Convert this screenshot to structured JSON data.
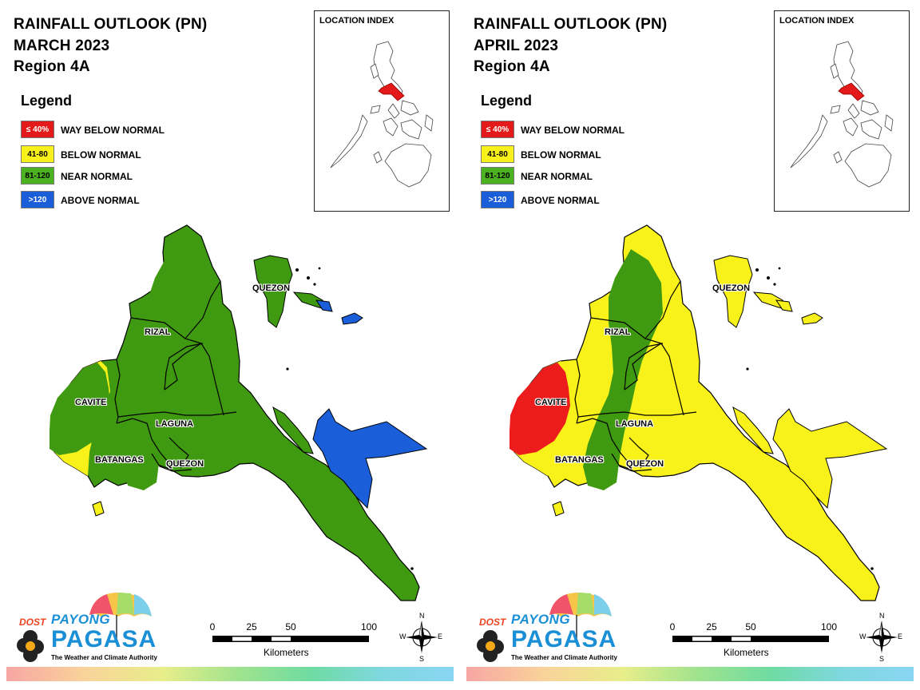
{
  "panels": [
    {
      "title_line1": "RAINFALL OUTLOOK (PN)",
      "title_line2": "MARCH 2023",
      "title_line3": "Region 4A",
      "provinces": {
        "quezon_north": "QUEZON",
        "rizal": "RIZAL",
        "cavite": "CAVITE",
        "laguna": "LAGUNA",
        "batangas": "BATANGAS",
        "quezon_south": "QUEZON"
      },
      "colors": {
        "mainland": "#3f9a11",
        "west_cavite": "#f9f21a",
        "bondoc_east": "#1a5fd9",
        "north_islands": "#3f9a11",
        "east_islands": "#1a5fd9",
        "islet_small": "#f9f21a",
        "central_band": "#3f9a11",
        "west_red": "#3f9a11"
      }
    },
    {
      "title_line1": "RAINFALL OUTLOOK (PN)",
      "title_line2": "APRIL 2023",
      "title_line3": "Region 4A",
      "provinces": {
        "quezon_north": "QUEZON",
        "rizal": "RIZAL",
        "cavite": "CAVITE",
        "laguna": "LAGUNA",
        "batangas": "BATANGAS",
        "quezon_south": "QUEZON"
      },
      "colors": {
        "mainland": "#f9f21a",
        "west_cavite": "#f9f21a",
        "bondoc_east": "#f9f21a",
        "north_islands": "#f9f21a",
        "east_islands": "#f9f21a",
        "islet_small": "#f9f21a",
        "central_band": "#3f9a11",
        "west_red": "#ec1c1c"
      }
    }
  ],
  "legend": {
    "title": "Legend",
    "items": [
      {
        "swatch_text": "≤ 40%",
        "label": "WAY BELOW NORMAL",
        "color": "#e41a1a",
        "text_color": "#ffffff"
      },
      {
        "swatch_text": "41-80",
        "label": "BELOW NORMAL",
        "color": "#f9f21a",
        "text_color": "#000000"
      },
      {
        "swatch_text": "81-120",
        "label": "NEAR NORMAL",
        "color": "#4cb221",
        "text_color": "#000000"
      },
      {
        "swatch_text": ">120",
        "label": "ABOVE NORMAL",
        "color": "#1a5fd9",
        "text_color": "#ffffff"
      }
    ]
  },
  "location_index": {
    "title": "LOCATION INDEX",
    "highlight_color": "#e41a1a"
  },
  "logo": {
    "dost": "DOST",
    "payong": "PAYONG",
    "pagasa": "PAGASA",
    "tagline": "The Weather and Climate Authority"
  },
  "scale_bar": {
    "ticks": [
      "0",
      "25",
      "50",
      "100"
    ],
    "unit": "Kilometers"
  },
  "compass": {
    "n": "N",
    "s": "S",
    "e": "E",
    "w": "W"
  }
}
